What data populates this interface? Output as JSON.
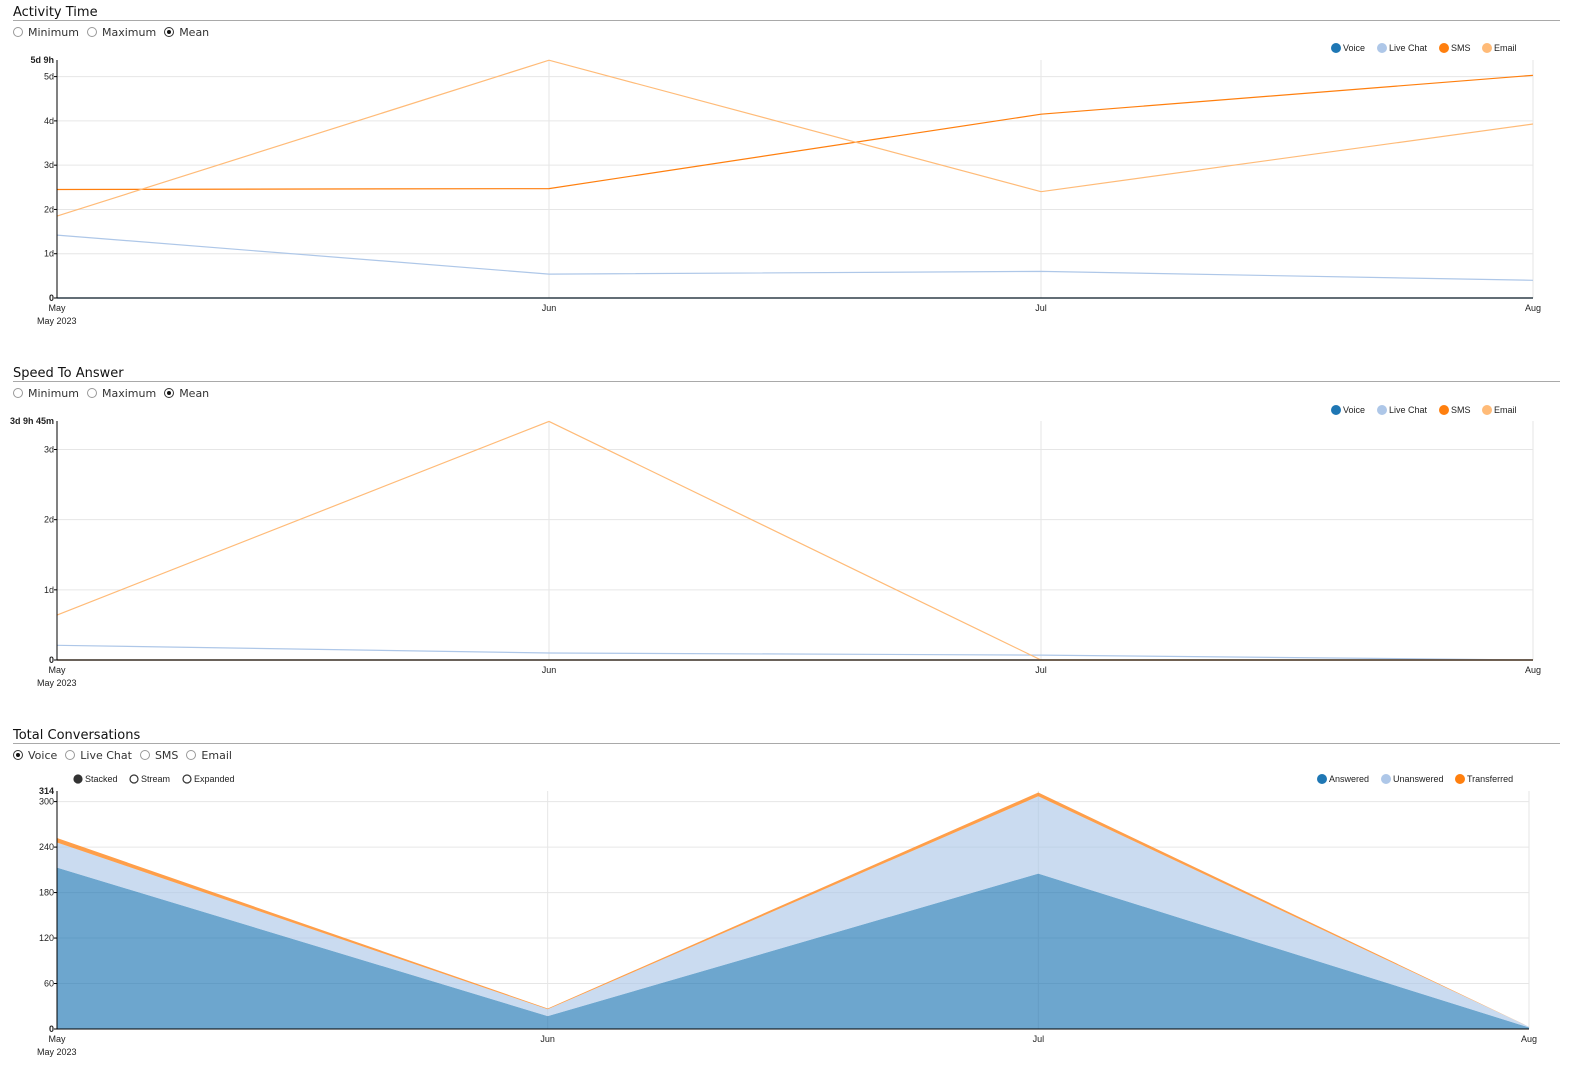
{
  "sections": {
    "activity": {
      "title": "Activity Time",
      "options": [
        {
          "label": "Minimum",
          "selected": false
        },
        {
          "label": "Maximum",
          "selected": false
        },
        {
          "label": "Mean",
          "selected": true
        }
      ]
    },
    "speed": {
      "title": "Speed To Answer",
      "options": [
        {
          "label": "Minimum",
          "selected": false
        },
        {
          "label": "Maximum",
          "selected": false
        },
        {
          "label": "Mean",
          "selected": true
        }
      ]
    },
    "total": {
      "title": "Total Conversations",
      "options": [
        {
          "label": "Voice",
          "selected": true
        },
        {
          "label": "Live Chat",
          "selected": false
        },
        {
          "label": "SMS",
          "selected": false
        },
        {
          "label": "Email",
          "selected": false
        }
      ],
      "modes": [
        {
          "label": "Stacked",
          "selected": true
        },
        {
          "label": "Stream",
          "selected": false
        },
        {
          "label": "Expanded",
          "selected": false
        }
      ]
    }
  },
  "colors": {
    "voice": "#1f77b4",
    "live_chat": "#aec7e8",
    "sms": "#ff7f0e",
    "email": "#ffbb78"
  },
  "chart_data": [
    {
      "type": "line",
      "title": "Activity Time",
      "x": [
        "May",
        "Jun",
        "Jul",
        "Aug"
      ],
      "x_sublabel": "May 2023",
      "y_unit": "days",
      "ylim": [
        0,
        5.375
      ],
      "y_ticks": [
        0,
        1,
        2,
        3,
        4,
        5
      ],
      "y_tick_labels": [
        "0",
        "1d",
        "2d",
        "3d",
        "4d",
        "5d"
      ],
      "y_max_label": "5d 9h",
      "grid": true,
      "legend_position": "top-right",
      "series": [
        {
          "name": "Voice",
          "color": "#1f77b4",
          "values": [
            0,
            0,
            0,
            0
          ]
        },
        {
          "name": "Live Chat",
          "color": "#aec7e8",
          "values": [
            1.42,
            0.54,
            0.6,
            0.4
          ]
        },
        {
          "name": "SMS",
          "color": "#ff7f0e",
          "values": [
            2.45,
            2.47,
            4.15,
            5.03
          ]
        },
        {
          "name": "Email",
          "color": "#ffbb78",
          "values": [
            1.85,
            5.37,
            2.4,
            3.93
          ]
        }
      ]
    },
    {
      "type": "line",
      "title": "Speed To Answer",
      "x": [
        "May",
        "Jun",
        "Jul",
        "Aug"
      ],
      "x_sublabel": "May 2023",
      "y_unit": "days",
      "ylim": [
        0,
        3.406
      ],
      "y_ticks": [
        0,
        1,
        2,
        3
      ],
      "y_tick_labels": [
        "0",
        "1d",
        "2d",
        "3d"
      ],
      "y_max_label": "3d 9h 45m",
      "grid": true,
      "legend_position": "top-right",
      "series": [
        {
          "name": "Voice",
          "color": "#1f77b4",
          "values": [
            0,
            0,
            0,
            0
          ]
        },
        {
          "name": "Live Chat",
          "color": "#aec7e8",
          "values": [
            0.21,
            0.1,
            0.07,
            0
          ]
        },
        {
          "name": "SMS",
          "color": "#ff7f0e",
          "values": [
            0,
            0,
            0,
            0
          ]
        },
        {
          "name": "Email",
          "color": "#ffbb78",
          "values": [
            0.64,
            3.4,
            0,
            0
          ]
        }
      ]
    },
    {
      "type": "area",
      "title": "Total Conversations",
      "stacked": true,
      "x": [
        "May",
        "Jun",
        "Jul",
        "Aug"
      ],
      "x_sublabel": "May 2023",
      "ylim": [
        0,
        314
      ],
      "y_ticks": [
        0,
        60,
        120,
        180,
        240,
        300
      ],
      "y_tick_labels": [
        "0",
        "60",
        "120",
        "180",
        "240",
        "300"
      ],
      "y_max_label": "314",
      "grid": true,
      "legend_position": "top-right",
      "series": [
        {
          "name": "Answered",
          "color": "#1f77b4",
          "values": [
            213,
            17,
            205,
            2
          ]
        },
        {
          "name": "Unanswered",
          "color": "#aec7e8",
          "values": [
            33,
            9,
            102,
            1
          ]
        },
        {
          "name": "Transferred",
          "color": "#ff7f0e",
          "values": [
            6,
            1,
            5,
            0
          ]
        }
      ]
    }
  ]
}
